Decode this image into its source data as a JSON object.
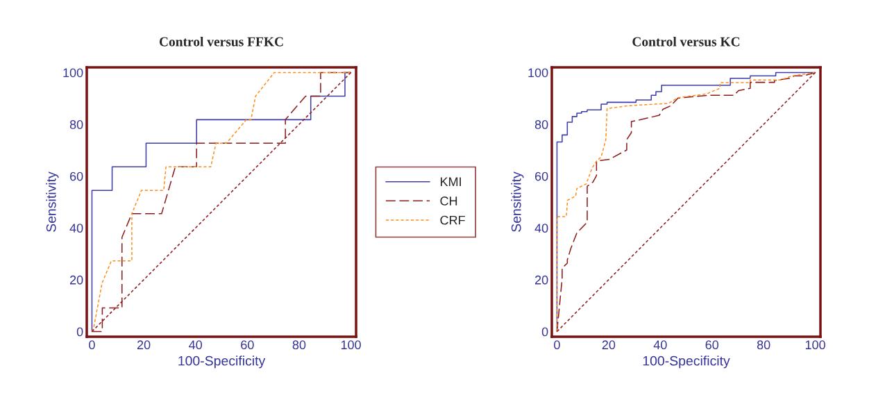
{
  "chart_data": [
    {
      "type": "line",
      "title": "Control versus FFKC",
      "xlabel": "100-Specificity",
      "ylabel": "Sensitivity",
      "xlim": [
        -2,
        102
      ],
      "ylim": [
        -2,
        102
      ],
      "xticks": [
        0,
        20,
        40,
        60,
        80,
        100
      ],
      "yticks": [
        0,
        20,
        40,
        60,
        80,
        100
      ],
      "grid": false,
      "legend": "right",
      "marker": "none",
      "series": [
        {
          "name": "KMI",
          "color": "#3c3caa",
          "line_style": "solid",
          "x": [
            0,
            0,
            7.8,
            7.8,
            20.9,
            20.9,
            40.4,
            40.4,
            84.5,
            84.5,
            97.7,
            97.7,
            100
          ],
          "values": [
            0,
            54.5,
            54.5,
            63.6,
            63.6,
            72.7,
            72.7,
            81.8,
            81.8,
            90.9,
            90.9,
            100,
            100
          ]
        },
        {
          "name": "CH",
          "color": "#8b1a1a",
          "line_style": "dashed",
          "x": [
            0,
            4,
            4,
            11.6,
            11.6,
            15.4,
            26.9,
            32.2,
            40.4,
            40.4,
            74.7,
            74.7,
            82.5,
            88.3,
            88.3,
            100
          ],
          "values": [
            0,
            0,
            9.1,
            9.1,
            36.4,
            45.5,
            45.5,
            63.6,
            63.6,
            72.7,
            72.7,
            81.8,
            90.9,
            90.9,
            100,
            100
          ]
        },
        {
          "name": "CRF",
          "color": "#ff8c1a",
          "line_style": "dotted",
          "x": [
            0,
            0.7,
            3.9,
            7.5,
            15.4,
            15.4,
            19.1,
            27.7,
            28.6,
            45.9,
            47.9,
            51.9,
            59.6,
            61.4,
            63.2,
            70.4,
            100
          ],
          "values": [
            0,
            1.6,
            18.7,
            27.3,
            27.3,
            45.5,
            54.5,
            54.5,
            63.6,
            63.6,
            72.7,
            72.7,
            81.8,
            81.8,
            90.9,
            100,
            100
          ]
        },
        {
          "color": "#8b1a1a",
          "line_style": "dotted",
          "x": [
            0,
            100
          ],
          "values": [
            0,
            100
          ]
        }
      ]
    },
    {
      "type": "line",
      "title": "Control versus KC",
      "xlabel": "100-Specificity",
      "ylabel": "Sensitivity",
      "xlim": [
        -2,
        102
      ],
      "ylim": [
        -2,
        102
      ],
      "xticks": [
        0,
        20,
        40,
        60,
        80,
        100
      ],
      "yticks": [
        0,
        20,
        40,
        60,
        80,
        100
      ],
      "grid": false,
      "legend": false,
      "marker": "none",
      "series": [
        {
          "color": "#3c3caa",
          "line_style": "solid",
          "x": [
            0,
            0,
            2,
            2,
            4,
            4,
            5.9,
            5.9,
            7.7,
            7.7,
            9.5,
            9.5,
            11.7,
            11.7,
            17.1,
            17.1,
            19.4,
            19.4,
            30.6,
            30.6,
            36.5,
            36.5,
            38.3,
            38.3,
            40.5,
            40.5,
            67.1,
            67.1,
            74.8,
            74.8,
            84.7,
            84.7,
            100
          ],
          "values": [
            0,
            73.2,
            73.2,
            75.9,
            75.9,
            80.8,
            80.8,
            83.0,
            83.0,
            84.3,
            84.3,
            84.9,
            84.9,
            85.6,
            85.6,
            87.8,
            87.8,
            88.5,
            88.5,
            89.4,
            89.4,
            91.2,
            91.2,
            92.6,
            92.6,
            95.1,
            95.1,
            97.8,
            97.8,
            98.7,
            98.7,
            100,
            100
          ]
        },
        {
          "color": "#8b1a1a",
          "line_style": "dashed",
          "x": [
            0,
            2,
            2,
            4,
            4,
            5.4,
            7.7,
            10.8,
            11.7,
            11.7,
            13.9,
            15.3,
            15.3,
            20.3,
            27.0,
            27.0,
            28.8,
            28.8,
            32.4,
            39.6,
            41.0,
            44.1,
            46.8,
            58.6,
            68.5,
            70.3,
            74.8,
            74.8,
            84.2,
            84.2,
            90.1,
            91.9,
            95.5,
            100
          ],
          "values": [
            0,
            20.5,
            24.6,
            26.4,
            27.7,
            32.2,
            38.1,
            41.3,
            42.2,
            56.1,
            57.7,
            60.2,
            65.8,
            66.5,
            70.1,
            74.1,
            76.8,
            81.1,
            81.8,
            83.5,
            85.8,
            87.2,
            90.1,
            91.2,
            91.2,
            93.0,
            93.9,
            96.2,
            96.2,
            96.9,
            97.8,
            98.7,
            98.7,
            100
          ]
        },
        {
          "color": "#ff8c1a",
          "line_style": "dotted",
          "x": [
            0,
            0,
            3.6,
            4.1,
            7.2,
            7.7,
            11.3,
            13.5,
            15.3,
            17.1,
            18.9,
            19.4,
            27.9,
            43.2,
            46.8,
            57.7,
            63.1,
            63.1,
            74.8,
            74.8,
            86.5,
            91.0,
            100
          ],
          "values": [
            0,
            44.4,
            44.4,
            50.7,
            52.3,
            55.2,
            57.0,
            62.9,
            65.8,
            67.4,
            74.1,
            86.1,
            87.2,
            88.1,
            90.3,
            91.7,
            93.9,
            96.1,
            96.1,
            97.1,
            97.1,
            98.7,
            100
          ]
        },
        {
          "color": "#8b1a1a",
          "line_style": "dotted",
          "x": [
            0,
            100
          ],
          "values": [
            0,
            100
          ]
        }
      ]
    }
  ]
}
